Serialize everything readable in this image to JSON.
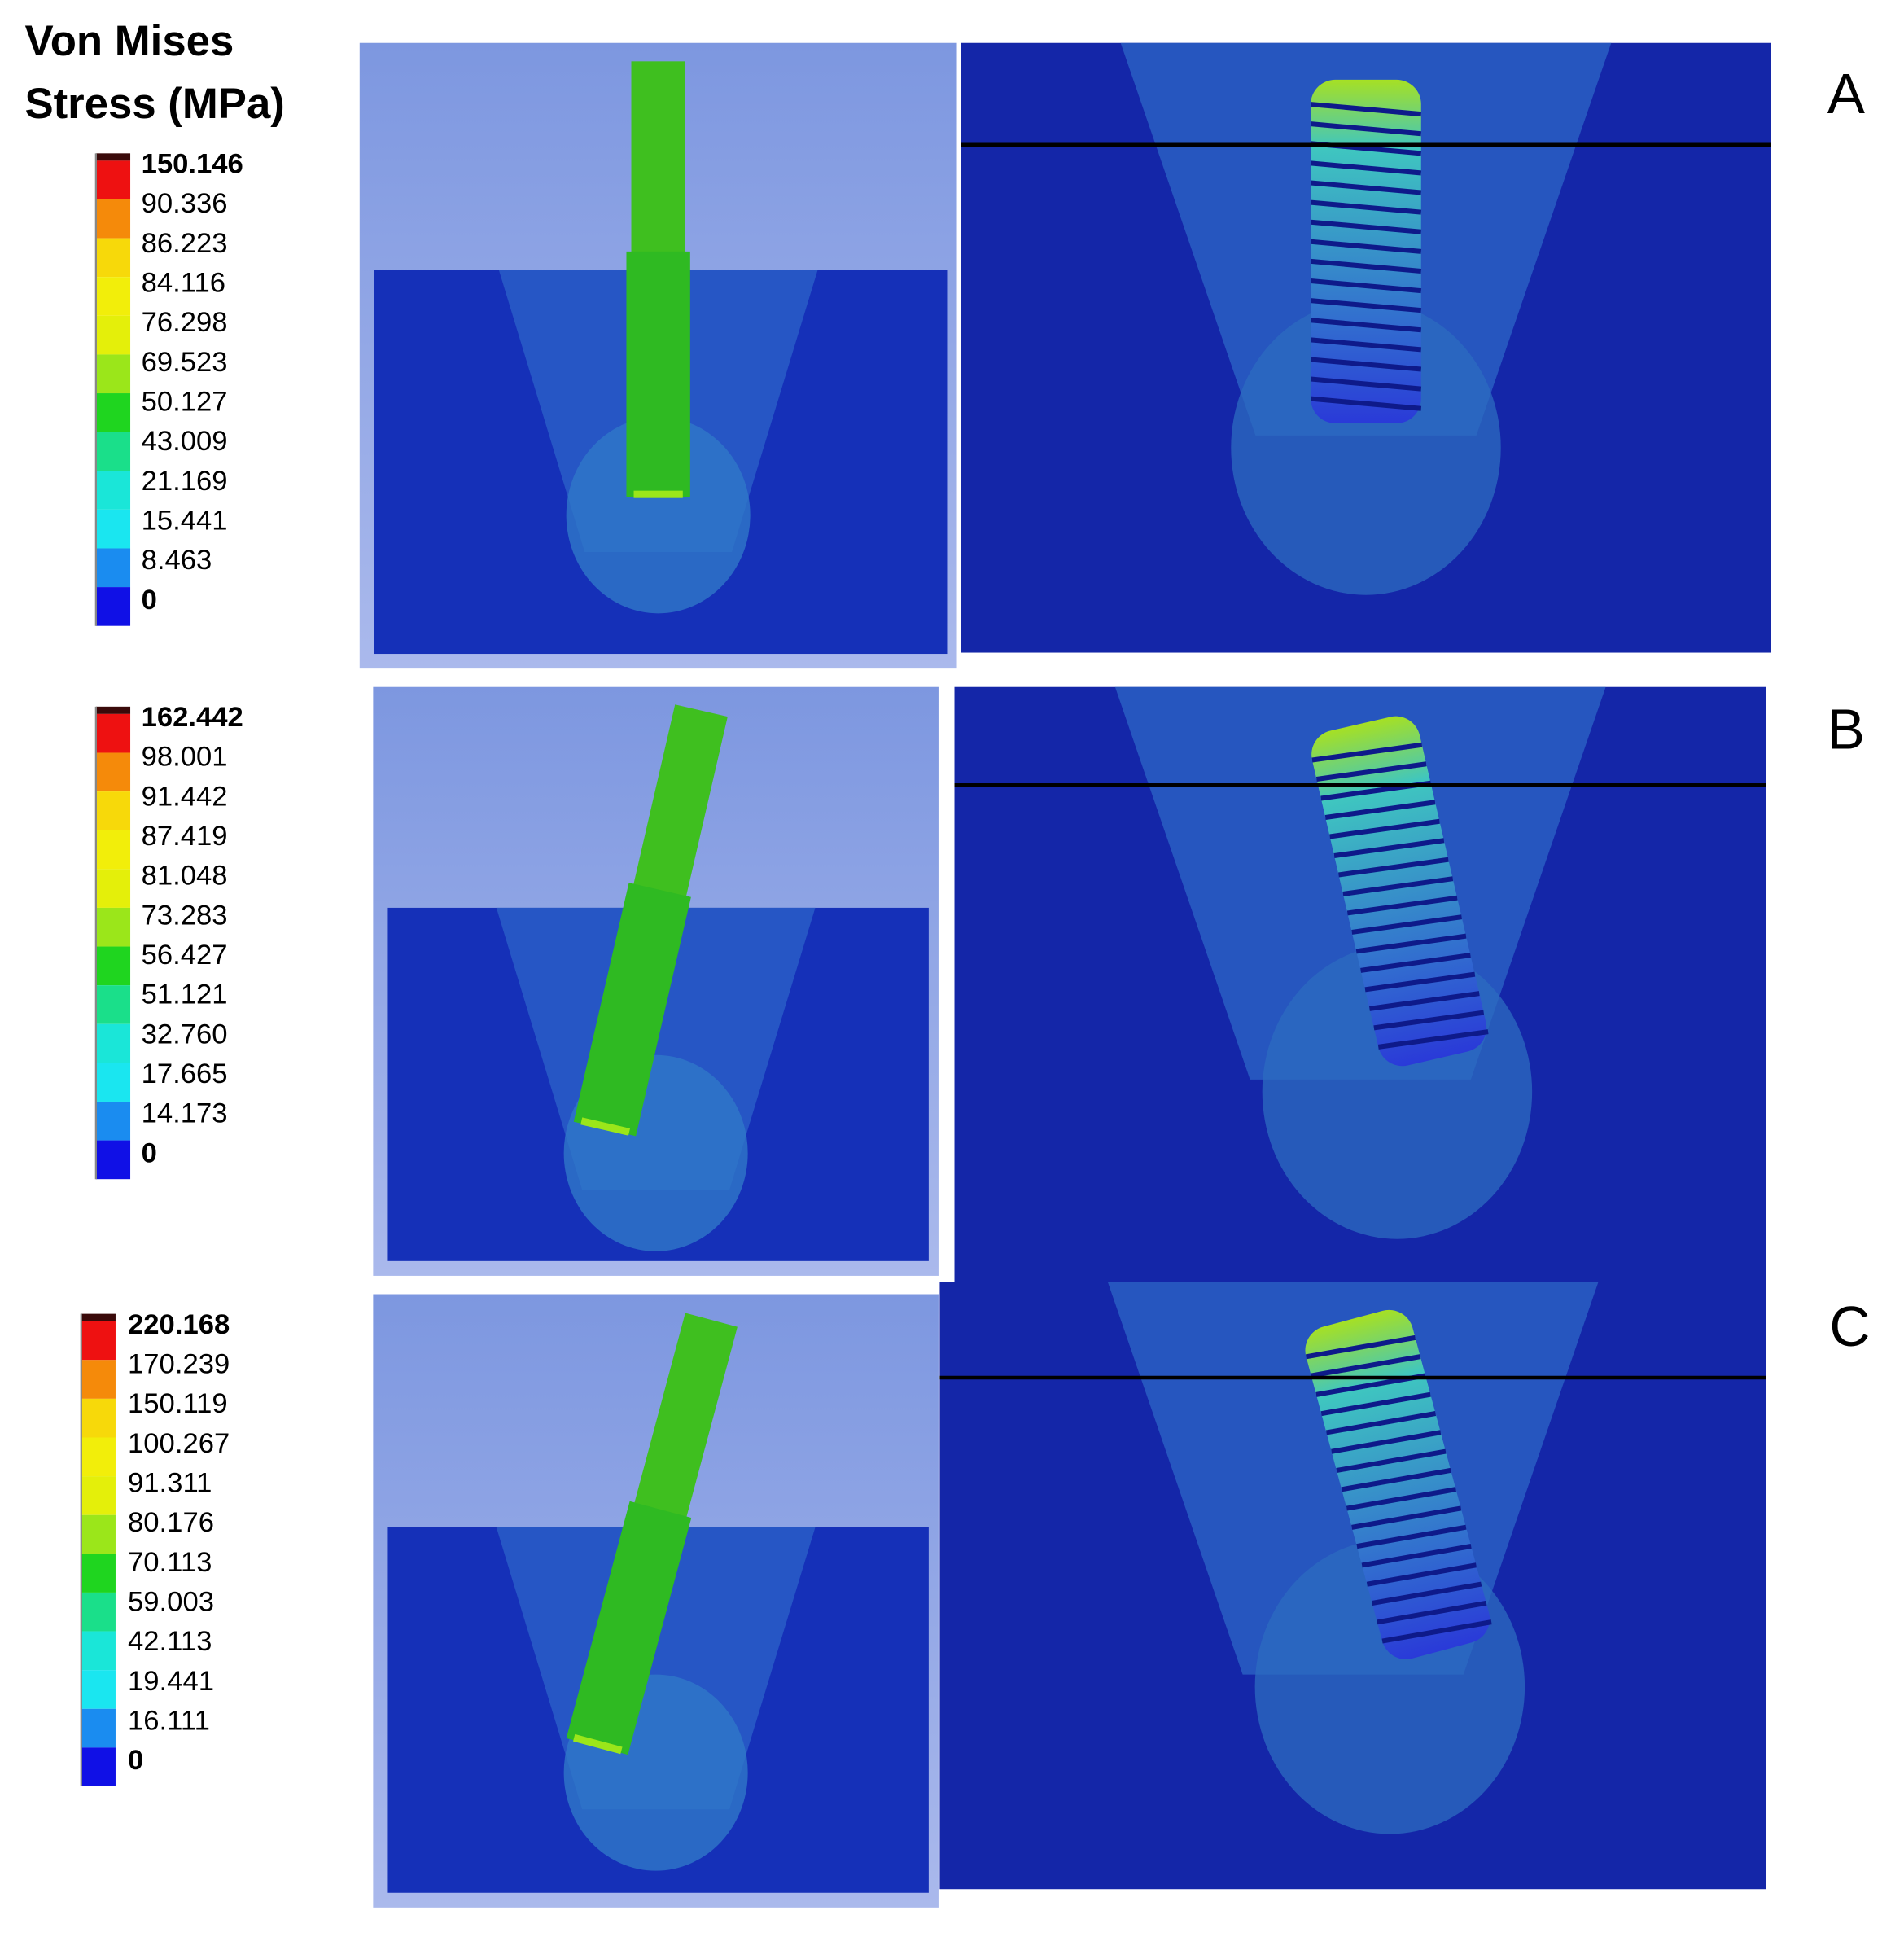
{
  "title": [
    "Von Mises",
    "Stress (MPa)"
  ],
  "panels": [
    {
      "label": "A",
      "legend": [
        "150.146",
        "90.336",
        "86.223",
        "84.116",
        "76.298",
        "69.523",
        "50.127",
        "43.009",
        "21.169",
        "15.441",
        "8.463",
        "0"
      ]
    },
    {
      "label": "B",
      "legend": [
        "162.442",
        "98.001",
        "91.442",
        "87.419",
        "81.048",
        "73.283",
        "56.427",
        "51.121",
        "32.760",
        "17.665",
        "14.173",
        "0"
      ]
    },
    {
      "label": "C",
      "legend": [
        "220.168",
        "170.239",
        "150.119",
        "100.267",
        "91.311",
        "80.176",
        "70.113",
        "59.003",
        "42.113",
        "19.441",
        "16.111",
        "0"
      ]
    }
  ]
}
